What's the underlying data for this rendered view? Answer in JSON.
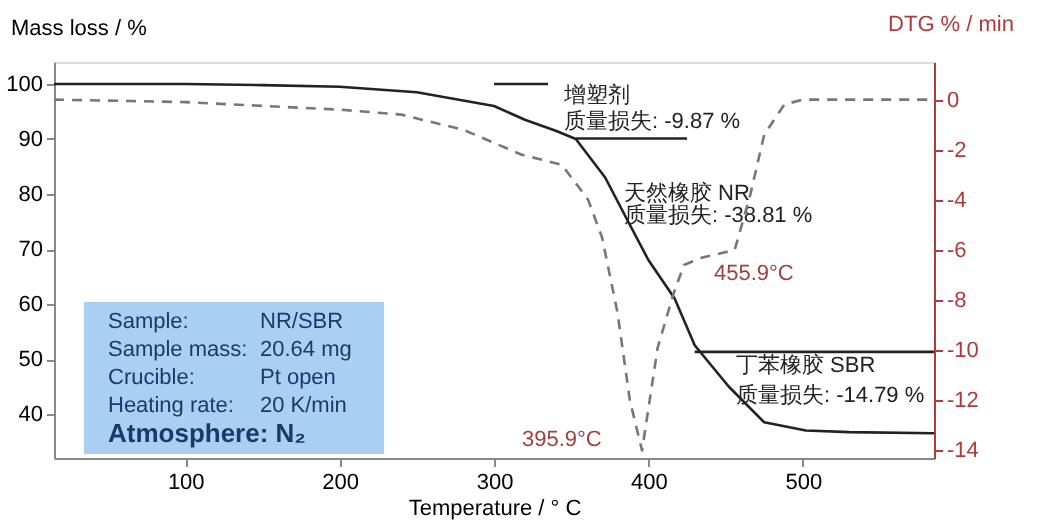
{
  "chart_data": {
    "type": "line",
    "xlabel": "Temperature / ° C",
    "ylabel": "Mass loss / %",
    "y2label": "DTG % / min",
    "xlim": [
      15,
      585
    ],
    "xticks": [
      100,
      200,
      300,
      400,
      500
    ],
    "ylim": [
      32,
      104
    ],
    "yticks": [
      40,
      50,
      60,
      70,
      80,
      90,
      100
    ],
    "y2lim": [
      -14.3,
      1.5
    ],
    "y2ticks": [
      0,
      -2,
      -4,
      -6,
      -8,
      -10,
      -12,
      -14
    ],
    "grid": false,
    "legend": false,
    "marker": "none",
    "series": [
      {
        "color": "#222222",
        "line_style": "solid",
        "x": [
          15,
          100,
          150,
          200,
          250,
          300,
          320,
          340,
          353,
          372,
          385,
          400,
          417,
          430,
          452,
          475,
          502,
          530,
          585
        ],
        "values": [
          100,
          100,
          99.8,
          99.5,
          98.5,
          96,
          93.5,
          91.5,
          90,
          83,
          76,
          68,
          61,
          52.5,
          45,
          38.5,
          37,
          36.7,
          36.5
        ]
      },
      {
        "color": "#222222",
        "line_style": "solid",
        "x": [
          300,
          335
        ],
        "values": [
          100,
          100
        ]
      },
      {
        "color": "#222222",
        "line_style": "solid",
        "x": [
          353,
          425
        ],
        "values": [
          90.1,
          90.1
        ]
      },
      {
        "color": "#222222",
        "line_style": "solid",
        "x": [
          430,
          585
        ],
        "values": [
          51.3,
          51.3
        ]
      },
      {
        "color": "#777777",
        "line_style": "dashed",
        "axis": "y2",
        "x": [
          15,
          100,
          150,
          200,
          240,
          280,
          318,
          344,
          361,
          370,
          380,
          388,
          395.9,
          406,
          416,
          423,
          435,
          449,
          455.9,
          466,
          475,
          488,
          500,
          520,
          585
        ],
        "values": [
          0,
          -0.1,
          -0.25,
          -0.4,
          -0.6,
          -1.2,
          -2.2,
          -2.6,
          -4,
          -5.5,
          -8.5,
          -12,
          -14,
          -9.9,
          -7.8,
          -6.6,
          -6.3,
          -6.1,
          -6,
          -3.8,
          -1.4,
          -0.2,
          0,
          0,
          0
        ]
      }
    ],
    "annotations": [
      "增塑剂",
      "质量损失: -9.87 %",
      "天然橡胶 NR",
      "质量损失: -38.81 %",
      "455.9°C",
      "395.9°C",
      "丁苯橡胶 SBR",
      "质量损失: -14.79 %",
      "Sample: NR/SBR",
      "Sample mass: 20.64 mg",
      "Crucible: Pt open",
      "Heating rate: 20 K/min",
      "Atmosphere: N₂"
    ]
  }
}
